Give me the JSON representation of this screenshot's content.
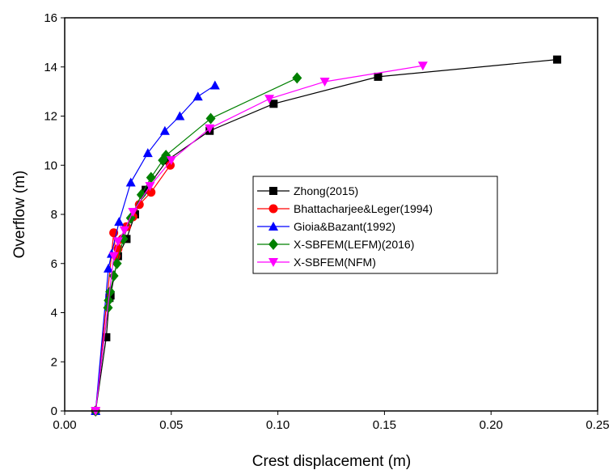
{
  "chart_data": {
    "type": "line",
    "xlabel": "Crest displacement (m)",
    "ylabel": "Overflow (m)",
    "xlim": [
      0.0,
      0.25
    ],
    "ylim": [
      0,
      16
    ],
    "x_ticks": [
      "0.00",
      "0.05",
      "0.10",
      "0.15",
      "0.20",
      "0.25"
    ],
    "y_ticks": [
      "0",
      "2",
      "4",
      "6",
      "8",
      "10",
      "12",
      "14",
      "16"
    ],
    "grid": false,
    "legend_position": "center-right",
    "series": [
      {
        "name": "Zhong(2015)",
        "color": "#000000",
        "marker": "square",
        "x": [
          0.0145,
          0.0195,
          0.021,
          0.0215,
          0.025,
          0.029,
          0.033,
          0.038,
          0.048,
          0.068,
          0.098,
          0.147,
          0.231
        ],
        "y": [
          0.0,
          3.0,
          4.6,
          4.7,
          6.3,
          7.0,
          8.0,
          9.0,
          10.2,
          11.4,
          12.5,
          13.6,
          14.3
        ]
      },
      {
        "name": "Bhattacharjee&Leger(1994)",
        "color": "#ff0000",
        "marker": "circle",
        "x": [
          0.0145,
          0.023,
          0.024,
          0.025,
          0.027,
          0.029,
          0.032,
          0.035,
          0.0405,
          0.0495
        ],
        "y": [
          0.0,
          7.25,
          6.3,
          6.6,
          7.0,
          7.5,
          7.9,
          8.4,
          8.9,
          10.0
        ]
      },
      {
        "name": "Gioia&Bazant(1992)",
        "color": "#0000ff",
        "marker": "triangle-up",
        "x": [
          0.0145,
          0.0205,
          0.022,
          0.0255,
          0.031,
          0.039,
          0.047,
          0.054,
          0.0625,
          0.0705
        ],
        "y": [
          0.0,
          5.8,
          6.4,
          7.7,
          9.3,
          10.5,
          11.4,
          12.0,
          12.8,
          13.25
        ]
      },
      {
        "name": "X-SBFEM(LEFM)(2016)",
        "color": "#008000",
        "marker": "diamond",
        "x": [
          0.0145,
          0.0203,
          0.0206,
          0.0213,
          0.023,
          0.0245,
          0.0275,
          0.031,
          0.036,
          0.0405,
          0.046,
          0.0475,
          0.0685,
          0.109
        ],
        "y": [
          0.0,
          4.2,
          4.5,
          4.85,
          5.5,
          6.0,
          7.0,
          7.85,
          8.8,
          9.5,
          10.2,
          10.4,
          11.9,
          13.55
        ]
      },
      {
        "name": "X-SBFEM(NFM)",
        "color": "#ff00ff",
        "marker": "triangle-down",
        "x": [
          0.0145,
          0.023,
          0.025,
          0.028,
          0.032,
          0.04,
          0.05,
          0.068,
          0.096,
          0.122,
          0.168
        ],
        "y": [
          0.0,
          6.3,
          6.9,
          7.35,
          8.1,
          9.15,
          10.2,
          11.5,
          12.7,
          13.4,
          14.05
        ]
      }
    ]
  }
}
